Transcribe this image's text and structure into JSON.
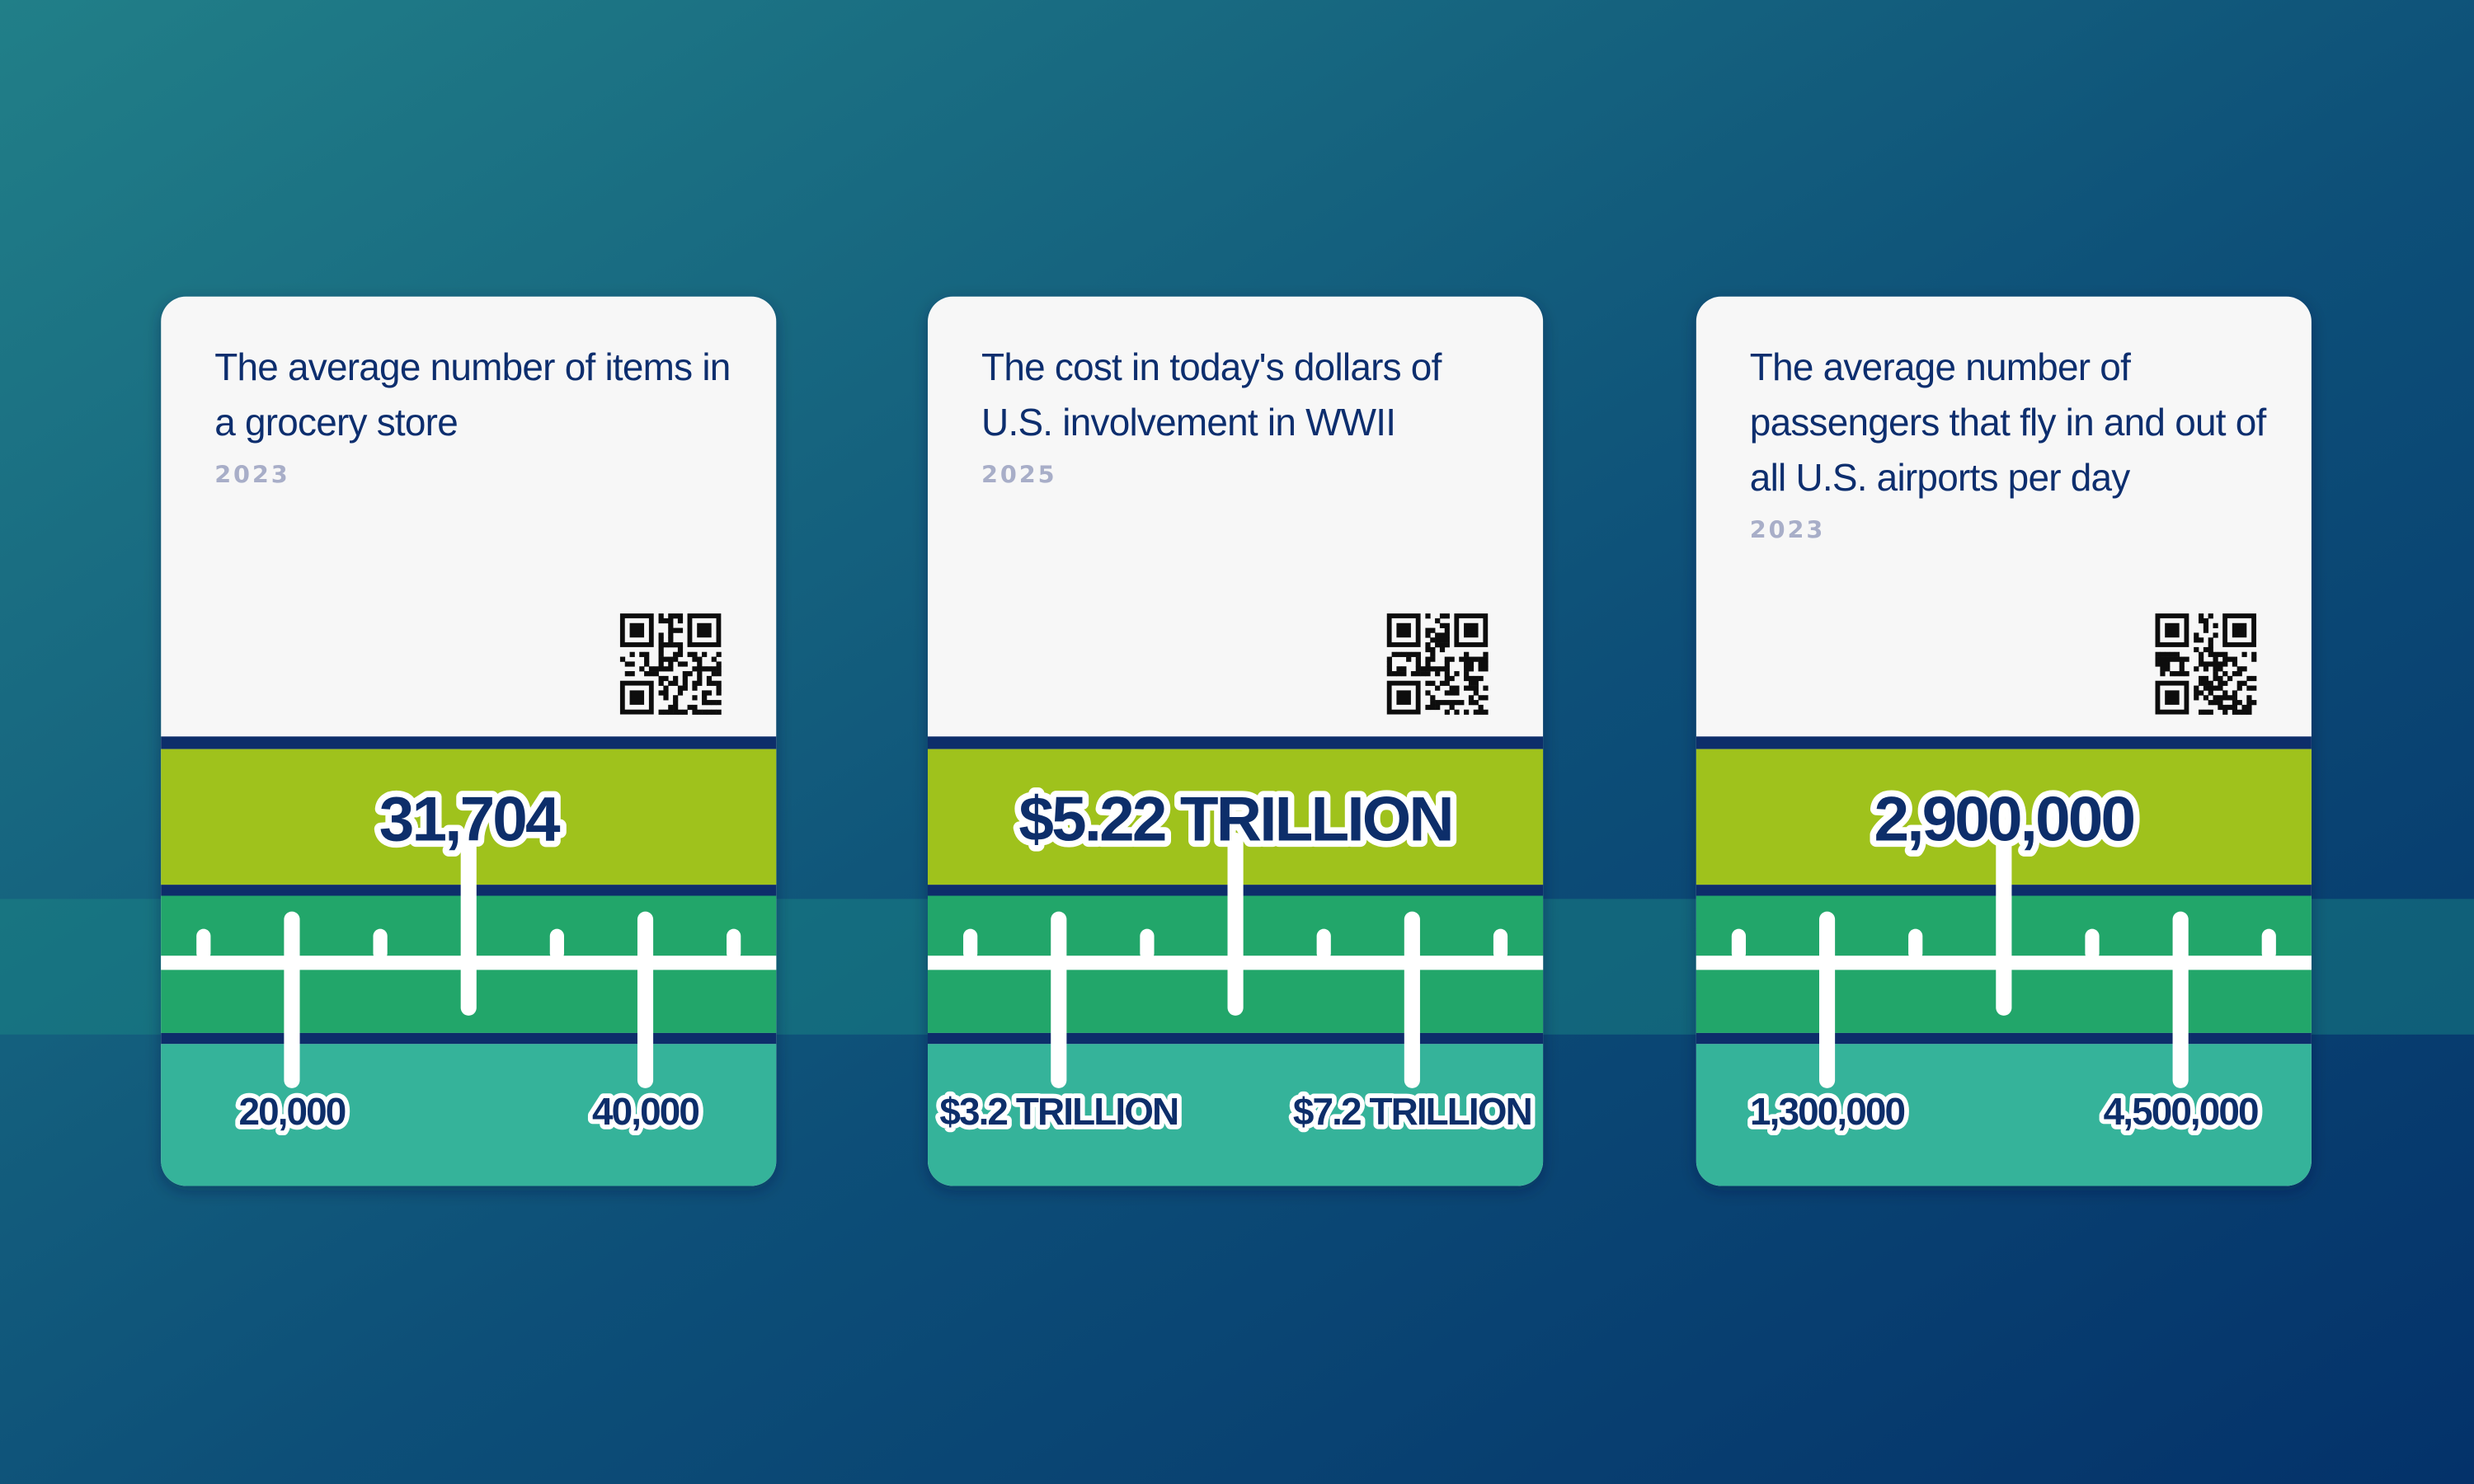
{
  "cards": [
    {
      "description": "The average number of items in a grocery store",
      "year": "2023",
      "answer": "31,704",
      "low": "20,000",
      "high": "40,000"
    },
    {
      "description": "The cost in today's dollars of U.S. involvement in WWII",
      "year": "2025",
      "answer": "$5.22 TRILLION",
      "low": "$3.2 TRILLION",
      "high": "$7.2 TRILLION"
    },
    {
      "description": "The average number of passengers that fly in and out of all U.S. airports per day",
      "year": "2023",
      "answer": "2,900,000",
      "low": "1,300,000",
      "high": "4,500,000"
    }
  ]
}
